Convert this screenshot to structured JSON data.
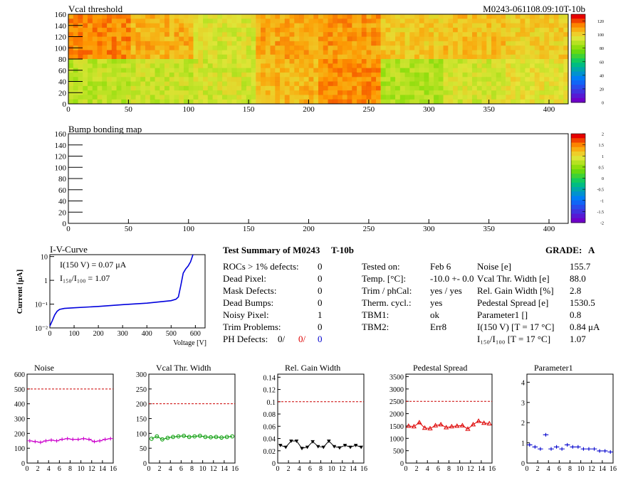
{
  "colors": {
    "axis": "#000000",
    "frame": "#000000",
    "limit_line": "#cc0000",
    "noise_series": "#cc00cc",
    "vcal_series": "#009900",
    "gain_series": "#000000",
    "pedestal_series": "#dd0000",
    "param_series": "#0000cc",
    "iv_curve": "#0000dd",
    "red_text": "#dd0000",
    "blue_text": "#0000cc"
  },
  "chart_data": [
    {
      "id": "vcal_threshold_map",
      "type": "heatmap",
      "title": "Vcal threshold",
      "module_label": "M0243-061108.09:10T-10b",
      "x_ticks": [
        "0",
        "50",
        "100",
        "150",
        "200",
        "250",
        "300",
        "350",
        "400"
      ],
      "y_ticks": [
        "0",
        "20",
        "40",
        "60",
        "80",
        "100",
        "120",
        "140",
        "160"
      ],
      "xlim": [
        0,
        416
      ],
      "ylim": [
        0,
        160
      ],
      "z_ticks": [
        "0",
        "20",
        "40",
        "60",
        "80",
        "100",
        "120"
      ],
      "zlim": [
        0,
        130
      ],
      "description_grid": "2 rows x 8 ROC tiles, each 52 columns x 80 rows",
      "tile_mean_values": [
        [
          115,
          108,
          95,
          110,
          112,
          104,
          106,
          103
        ],
        [
          90,
          92,
          94,
          107,
          114,
          88,
          94,
          98
        ]
      ]
    },
    {
      "id": "bump_bonding_map",
      "type": "heatmap",
      "title": "Bump bonding map",
      "x_ticks": [
        "0",
        "50",
        "100",
        "150",
        "200",
        "250",
        "300",
        "350",
        "400"
      ],
      "y_ticks": [
        "0",
        "20",
        "40",
        "60",
        "80",
        "100",
        "120",
        "140",
        "160"
      ],
      "xlim": [
        0,
        416
      ],
      "ylim": [
        0,
        160
      ],
      "z_ticks": [
        "2",
        "1.5",
        "1",
        "0.5",
        "0",
        "-0.5",
        "-1",
        "-1.5",
        "-2"
      ],
      "zlim": [
        -2,
        2
      ],
      "values": []
    },
    {
      "id": "iv_curve",
      "type": "line",
      "title": "I-V-Curve",
      "xlabel": "Voltage [V]",
      "ylabel": "Current [μA]",
      "log_y": true,
      "x_ticks": [
        "0",
        "100",
        "200",
        "300",
        "400",
        "500",
        "600"
      ],
      "y_ticks": [
        "10⁻²",
        "10⁻¹",
        "1",
        "10"
      ],
      "xlim": [
        0,
        640
      ],
      "ylim": [
        0.01,
        12
      ],
      "x": [
        0,
        10,
        20,
        30,
        40,
        60,
        100,
        200,
        300,
        400,
        500,
        520,
        530,
        540,
        550,
        560,
        570,
        580,
        590
      ],
      "y": [
        0.012,
        0.02,
        0.035,
        0.05,
        0.06,
        0.066,
        0.07,
        0.08,
        0.095,
        0.11,
        0.14,
        0.16,
        0.2,
        0.6,
        2.0,
        3.0,
        4.0,
        6.0,
        12.0
      ],
      "annotations": [
        "I(150 V) = 0.07 μA",
        "I₁₅₀/I₁₀₀ = 1.07"
      ]
    },
    {
      "id": "noise",
      "type": "line",
      "title": "Noise",
      "x_ticks": [
        "0",
        "2",
        "4",
        "6",
        "8",
        "10",
        "12",
        "14",
        "16"
      ],
      "y_ticks": [
        "0",
        "100",
        "200",
        "300",
        "400",
        "500",
        "600"
      ],
      "xlim": [
        0,
        16
      ],
      "ylim": [
        0,
        600
      ],
      "limit": 500,
      "x": [
        0.5,
        1.5,
        2.5,
        3.5,
        4.5,
        5.5,
        6.5,
        7.5,
        8.5,
        9.5,
        10.5,
        11.5,
        12.5,
        13.5,
        14.5,
        15.5
      ],
      "y": [
        150,
        145,
        140,
        150,
        155,
        150,
        160,
        165,
        160,
        160,
        165,
        160,
        145,
        150,
        160,
        165
      ],
      "marker": "cross"
    },
    {
      "id": "vcal_thr_width",
      "type": "line",
      "title": "Vcal Thr. Width",
      "x_ticks": [
        "0",
        "2",
        "4",
        "6",
        "8",
        "10",
        "12",
        "14",
        "16"
      ],
      "y_ticks": [
        "0",
        "50",
        "100",
        "150",
        "200",
        "250",
        "300"
      ],
      "xlim": [
        0,
        16
      ],
      "ylim": [
        0,
        300
      ],
      "limit": 200,
      "x": [
        0.5,
        1.5,
        2.5,
        3.5,
        4.5,
        5.5,
        6.5,
        7.5,
        8.5,
        9.5,
        10.5,
        11.5,
        12.5,
        13.5,
        14.5,
        15.5
      ],
      "y": [
        82,
        90,
        80,
        85,
        88,
        90,
        92,
        88,
        90,
        92,
        88,
        87,
        88,
        86,
        88,
        90
      ],
      "marker": "circle"
    },
    {
      "id": "rel_gain_width",
      "type": "line",
      "title": "Rel. Gain Width",
      "x_ticks": [
        "0",
        "2",
        "4",
        "6",
        "8",
        "10",
        "12",
        "14",
        "16"
      ],
      "y_ticks": [
        "0",
        "0.02",
        "0.04",
        "0.06",
        "0.08",
        "0.1",
        "0.12",
        "0.14"
      ],
      "xlim": [
        0,
        16
      ],
      "ylim": [
        0,
        0.145
      ],
      "limit": 0.1,
      "x": [
        0.5,
        1.5,
        2.5,
        3.5,
        4.5,
        5.5,
        6.5,
        7.5,
        8.5,
        9.5,
        10.5,
        11.5,
        12.5,
        13.5,
        14.5,
        15.5
      ],
      "y": [
        0.029,
        0.026,
        0.036,
        0.036,
        0.024,
        0.026,
        0.035,
        0.027,
        0.026,
        0.036,
        0.027,
        0.025,
        0.029,
        0.026,
        0.029,
        0.026
      ],
      "marker": "triangle-down"
    },
    {
      "id": "pedestal_spread",
      "type": "line",
      "title": "Pedestal Spread",
      "x_ticks": [
        "0",
        "2",
        "4",
        "6",
        "8",
        "10",
        "12",
        "14",
        "16"
      ],
      "y_ticks": [
        "0",
        "500",
        "1000",
        "1500",
        "2000",
        "2500",
        "3000",
        "3500"
      ],
      "xlim": [
        0,
        16
      ],
      "ylim": [
        0,
        3600
      ],
      "limit": 2500,
      "x": [
        0.5,
        1.5,
        2.5,
        3.5,
        4.5,
        5.5,
        6.5,
        7.5,
        8.5,
        9.5,
        10.5,
        11.5,
        12.5,
        13.5,
        14.5,
        15.5
      ],
      "y": [
        1500,
        1480,
        1640,
        1420,
        1400,
        1520,
        1560,
        1440,
        1480,
        1500,
        1520,
        1380,
        1560,
        1700,
        1620,
        1600
      ],
      "marker": "triangle-up"
    },
    {
      "id": "parameter1",
      "type": "scatter",
      "title": "Parameter1",
      "x_ticks": [
        "0",
        "2",
        "4",
        "6",
        "8",
        "10",
        "12",
        "14",
        "16"
      ],
      "y_ticks": [
        "0",
        "1",
        "2",
        "3",
        "4"
      ],
      "xlim": [
        0,
        16
      ],
      "ylim": [
        0,
        4.4
      ],
      "x": [
        0.5,
        1.5,
        2.5,
        3.5,
        4.5,
        5.5,
        6.5,
        7.5,
        8.5,
        9.5,
        10.5,
        11.5,
        12.5,
        13.5,
        14.5,
        15.5
      ],
      "y": [
        0.9,
        0.8,
        0.7,
        1.4,
        0.7,
        0.8,
        0.7,
        0.9,
        0.8,
        0.8,
        0.7,
        0.7,
        0.7,
        0.6,
        0.6,
        0.55
      ],
      "marker": "cross"
    }
  ],
  "summary": {
    "title": "Test Summary of M0243",
    "tag": "T-10b",
    "grade_label": "GRADE:",
    "grade": "A",
    "defects": [
      {
        "label": "ROCs > 1% defects:",
        "value": "0"
      },
      {
        "label": "Dead Pixel:",
        "value": "0"
      },
      {
        "label": "Mask Defects:",
        "value": "0"
      },
      {
        "label": "Dead Bumps:",
        "value": "0"
      },
      {
        "label": "Noisy Pixel:",
        "value": "1"
      },
      {
        "label": "Trim Problems:",
        "value": "0"
      }
    ],
    "ph_defects": {
      "label": "PH Defects:",
      "v1": "0/",
      "v2": "0/",
      "v3": "0"
    },
    "info": [
      {
        "label": "Tested on:",
        "value": "Feb 6"
      },
      {
        "label": "Temp. [°C]:",
        "value": "-10.0 +- 0.0"
      },
      {
        "label": "Trim / phCal:",
        "value": "yes / yes"
      },
      {
        "label": "Therm. cycl.:",
        "value": "yes"
      },
      {
        "label": "TBM1:",
        "value": "ok"
      },
      {
        "label": "TBM2:",
        "value": "Err8"
      }
    ],
    "results": [
      {
        "label": "Noise [e]",
        "value": "155.7"
      },
      {
        "label": "Vcal Thr. Width [e]",
        "value": "88.0"
      },
      {
        "label": "Rel. Gain Width [%]",
        "value": "2.8"
      },
      {
        "label": "Pedestal Spread [e]",
        "value": "1530.5"
      },
      {
        "label": "Parameter1 []",
        "value": "0.8"
      },
      {
        "label": "I(150 V) [T = 17 °C]",
        "value": "0.84 μA"
      },
      {
        "label": "I₁₅₀/I₁₀₀  [T = 17 °C]",
        "value": "1.07"
      }
    ]
  }
}
